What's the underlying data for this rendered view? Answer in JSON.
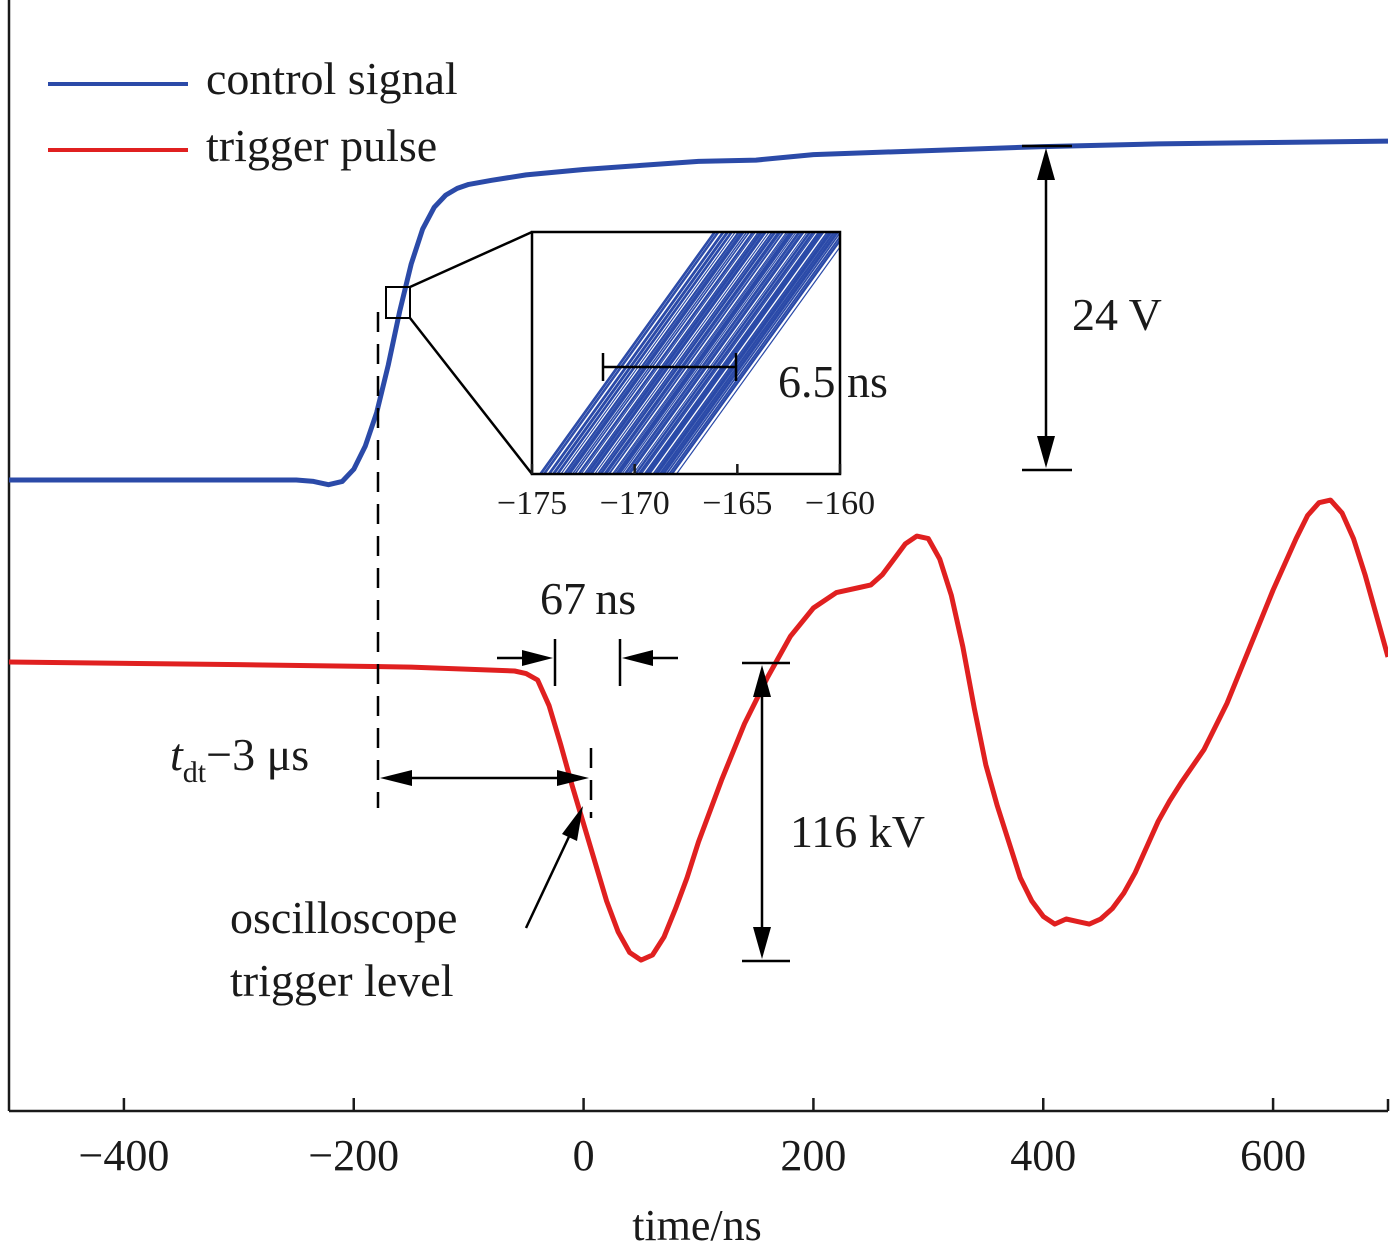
{
  "chart_data": {
    "type": "line",
    "xlabel": "time/ns",
    "xlim": [
      -500,
      700
    ],
    "xticks": [
      -400,
      -200,
      0,
      200,
      400,
      600
    ],
    "xtick_labels": [
      "−400",
      "−200",
      "0",
      "200",
      "400",
      "600"
    ],
    "y_ticks_shown": false,
    "legend_position": "top-left",
    "series": [
      {
        "name": "control signal",
        "color": "#2b4aa8",
        "x": [
          -500,
          -300,
          -250,
          -235,
          -222,
          -210,
          -200,
          -190,
          -180,
          -170,
          -160,
          -150,
          -140,
          -130,
          -120,
          -110,
          -100,
          -80,
          -50,
          0,
          50,
          100,
          150,
          200,
          300,
          400,
          500,
          600,
          700
        ],
        "y": [
          0.0,
          0.0,
          0.0,
          -0.1,
          -0.35,
          -0.1,
          0.8,
          2.5,
          5.0,
          8.5,
          12.5,
          16.0,
          18.6,
          20.2,
          21.1,
          21.6,
          21.9,
          22.2,
          22.6,
          23.0,
          23.3,
          23.6,
          23.7,
          24.1,
          24.4,
          24.7,
          24.9,
          25.0,
          25.1
        ]
      },
      {
        "name": "trigger pulse",
        "color": "#e02020",
        "x": [
          -500,
          -300,
          -150,
          -60,
          -50,
          -40,
          -30,
          -20,
          -10,
          0,
          10,
          20,
          30,
          40,
          50,
          60,
          70,
          80,
          90,
          100,
          120,
          140,
          160,
          180,
          200,
          220,
          240,
          250,
          260,
          270,
          280,
          290,
          300,
          310,
          320,
          330,
          340,
          350,
          360,
          370,
          380,
          390,
          400,
          410,
          420,
          430,
          440,
          450,
          460,
          470,
          480,
          490,
          500,
          510,
          520,
          540,
          560,
          580,
          600,
          620,
          630,
          640,
          650,
          660,
          670,
          680,
          690,
          700
        ],
        "y": [
          0.0,
          -1.0,
          -2.0,
          -3.5,
          -4.5,
          -7.0,
          -17.0,
          -32.0,
          -48.0,
          -63.0,
          -78.0,
          -93.0,
          -105.0,
          -113.0,
          -116.0,
          -114.0,
          -107.0,
          -96.0,
          -84.0,
          -70.0,
          -46.0,
          -24.0,
          -6.0,
          10.0,
          21.0,
          27.0,
          29.0,
          30.0,
          34.0,
          40.0,
          46.0,
          49.0,
          48.0,
          40.0,
          26.0,
          6.0,
          -18.0,
          -40.0,
          -56.0,
          -70.0,
          -84.0,
          -93.0,
          -99.0,
          -102.0,
          -100.0,
          -101.0,
          -102.0,
          -100.0,
          -96.0,
          -90.0,
          -82.0,
          -72.0,
          -62.0,
          -54.0,
          -47.0,
          -34.0,
          -16.0,
          6.0,
          28.0,
          48.0,
          57.0,
          62.0,
          63.0,
          58.0,
          48.0,
          34.0,
          18.0,
          2.0
        ]
      }
    ],
    "inset": {
      "xlim": [
        -175,
        -160
      ],
      "xticks": [
        -175,
        -170,
        -165,
        -160
      ],
      "xtick_labels": [
        "−175",
        "−170",
        "−165",
        "−160"
      ],
      "trace_color": "#2b4aa8",
      "jitter_label": "6.5 ns",
      "jitter_range": [
        -171.5,
        -165.0
      ]
    },
    "annotations": {
      "control_amplitude": "24 V",
      "trigger_amplitude": "116 kV",
      "rise_time": "67 ns",
      "delay_prefix": "t",
      "delay_subscript": "dt",
      "delay_suffix": "−3 μs",
      "trigger_level_line1": "oscilloscope",
      "trigger_level_line2": "trigger level"
    }
  }
}
